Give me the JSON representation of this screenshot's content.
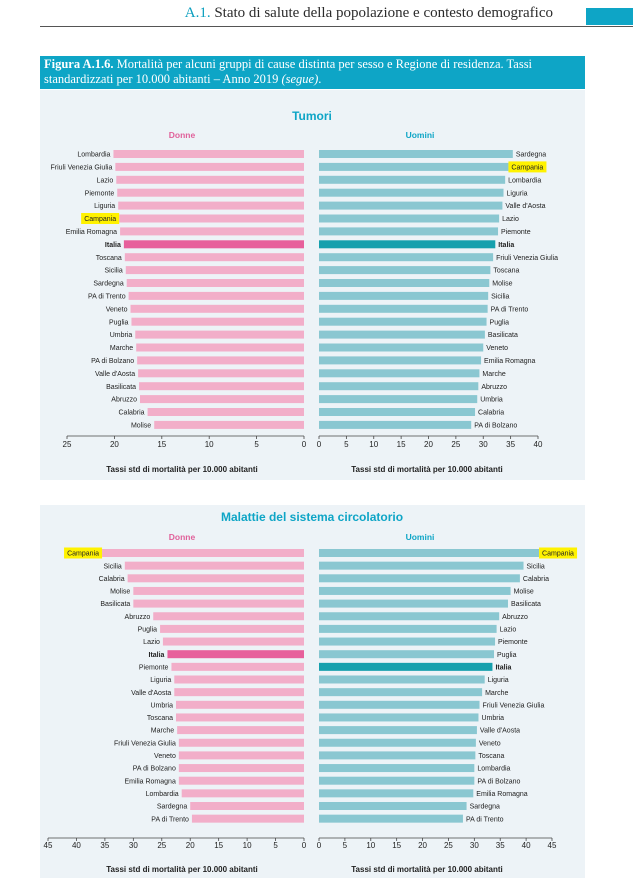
{
  "header": {
    "section_number": "A.1.",
    "section_title": "Stato di salute della popolazione e contesto demografico"
  },
  "figure": {
    "label": "Figura A.1.6.",
    "caption": "Mortalità per alcuni gruppi di cause distinta per sesso e Regione di residenza. Tassi standardizzati per 10.000 abitanti – Anno 2019",
    "caption_suffix": "(segue)"
  },
  "colors": {
    "women_bar": "#f2aec9",
    "women_italia": "#e7609b",
    "men_bar": "#8ac7d1",
    "men_italia": "#16a0ad",
    "highlight": "#fff200",
    "title_teal": "#0ea5c6",
    "women_label": "#e0609a"
  },
  "chart_data": [
    {
      "type": "bar",
      "orientation": "horizontal",
      "title": "Tumori",
      "women": {
        "name": "Donne",
        "categories": [
          "Lombardia",
          "Friuli Venezia Giulia",
          "Lazio",
          "Piemonte",
          "Liguria",
          "Campania",
          "Emilia Romagna",
          "Italia",
          "Toscana",
          "Sicilia",
          "Sardegna",
          "PA di Trento",
          "Veneto",
          "Puglia",
          "Umbria",
          "Marche",
          "PA di Bolzano",
          "Valle d'Aosta",
          "Basilicata",
          "Abruzzo",
          "Calabria",
          "Molise"
        ],
        "values": [
          20.1,
          19.9,
          19.8,
          19.7,
          19.6,
          19.5,
          19.4,
          19.0,
          18.9,
          18.8,
          18.7,
          18.5,
          18.3,
          18.2,
          17.8,
          17.7,
          17.6,
          17.5,
          17.4,
          17.3,
          16.5,
          15.8
        ],
        "highlight": [
          "Campania"
        ],
        "xlabel": "Tassi std di mortalità per 10.000 abitanti",
        "xlim": [
          25,
          0
        ],
        "xticks": [
          25,
          20,
          15,
          10,
          5,
          0
        ]
      },
      "men": {
        "name": "Uomini",
        "categories": [
          "Sardegna",
          "Campania",
          "Lombardia",
          "Liguria",
          "Valle d'Aosta",
          "Lazio",
          "Piemonte",
          "Italia",
          "Friuli Venezia Giulia",
          "Toscana",
          "Molise",
          "Sicilia",
          "PA di Trento",
          "Puglia",
          "Basilicata",
          "Veneto",
          "Emilia Romagna",
          "Marche",
          "Abruzzo",
          "Umbria",
          "Calabria",
          "PA di Bolzano"
        ],
        "values": [
          35.4,
          34.6,
          34.0,
          33.7,
          33.5,
          32.9,
          32.7,
          32.2,
          31.8,
          31.3,
          31.1,
          30.9,
          30.8,
          30.6,
          30.3,
          30.0,
          29.6,
          29.3,
          29.1,
          28.9,
          28.5,
          27.8
        ],
        "highlight": [
          "Campania"
        ],
        "xlabel": "Tassi std di mortalità per 10.000 abitanti",
        "xlim": [
          0,
          40
        ],
        "xticks": [
          0,
          5,
          10,
          15,
          20,
          25,
          30,
          35,
          40
        ]
      }
    },
    {
      "type": "bar",
      "orientation": "horizontal",
      "title": "Malattie del sistema circolatorio",
      "women": {
        "name": "Donne",
        "categories": [
          "Campania",
          "Sicilia",
          "Calabria",
          "Molise",
          "Basilicata",
          "Abruzzo",
          "Puglia",
          "Lazio",
          "Italia",
          "Piemonte",
          "Liguria",
          "Valle d'Aosta",
          "Umbria",
          "Toscana",
          "Marche",
          "Friuli Venezia Giulia",
          "Veneto",
          "PA di Bolzano",
          "Emilia Romagna",
          "Lombardia",
          "Sardegna",
          "PA di Trento"
        ],
        "values": [
          35.5,
          31.5,
          31.0,
          30.0,
          30.0,
          26.5,
          25.3,
          24.8,
          24.0,
          23.3,
          22.8,
          22.8,
          22.5,
          22.5,
          22.3,
          22.0,
          22.0,
          22.0,
          22.0,
          21.5,
          20.0,
          19.7
        ],
        "highlight": [
          "Campania"
        ],
        "xlabel": "Tassi std di mortalità per 10.000 abitanti",
        "xlim": [
          45,
          0
        ],
        "xticks": [
          45,
          40,
          35,
          30,
          25,
          20,
          15,
          10,
          5,
          0
        ]
      },
      "men": {
        "name": "Uomini",
        "categories": [
          "Campania",
          "Sicilia",
          "Calabria",
          "Molise",
          "Basilicata",
          "Abruzzo",
          "Lazio",
          "Piemonte",
          "Puglia",
          "Italia",
          "Liguria",
          "Marche",
          "Friuli Venezia Giulia",
          "Umbria",
          "Valle d'Aosta",
          "Veneto",
          "Toscana",
          "Lombardia",
          "PA di Bolzano",
          "Emilia Romagna",
          "Sardegna",
          "PA di Trento"
        ],
        "values": [
          42.5,
          39.5,
          38.8,
          37.0,
          36.5,
          34.8,
          34.3,
          34.0,
          33.8,
          33.5,
          32.0,
          31.5,
          31.0,
          30.8,
          30.5,
          30.3,
          30.2,
          30.0,
          30.0,
          29.8,
          28.5,
          27.8
        ],
        "highlight": [
          "Campania"
        ],
        "xlabel": "Tassi std di mortalità per 10.000 abitanti",
        "xlim": [
          0,
          45
        ],
        "xticks": [
          0,
          5,
          10,
          15,
          20,
          25,
          30,
          35,
          40,
          45
        ]
      }
    }
  ]
}
